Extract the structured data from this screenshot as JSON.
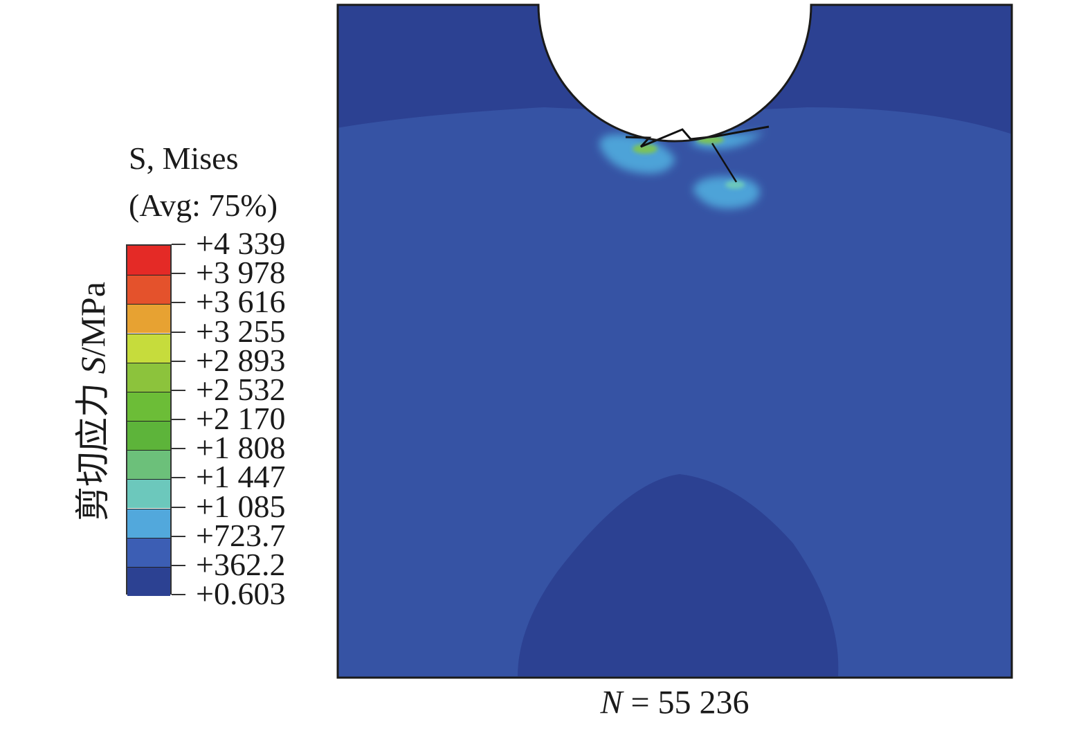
{
  "legend": {
    "title_line1": "S, Mises",
    "title_line2": "(Avg: 75%)",
    "axis_label_cn": "剪切应力",
    "axis_label_sym": "S",
    "axis_label_unit": "/MPa",
    "levels": [
      "+4 339",
      "+3 978",
      "+3 616",
      "+3 255",
      "+2 893",
      "+2 532",
      "+2 170",
      "+1 808",
      "+1 447",
      "+1 085",
      "+723.7",
      "+362.2",
      "+0.603"
    ],
    "colors": [
      "#e42a26",
      "#e4522c",
      "#e7a232",
      "#c6dc3c",
      "#8cc33c",
      "#6cbd37",
      "#5db43a",
      "#6cc07a",
      "#6cc8bc",
      "#52a8dc",
      "#3c5eb4",
      "#2c4192"
    ]
  },
  "figure": {
    "background_color": "#3653a4",
    "region_dark_color": "#2c4192",
    "region_light_color": "#3f66b0",
    "hot_cyan_color": "#4ea3d8",
    "hot_teal_color": "#6cc8bc",
    "hot_green_color": "#7cc25a"
  },
  "caption": {
    "sym": "N",
    "eq": " = 55 236"
  }
}
